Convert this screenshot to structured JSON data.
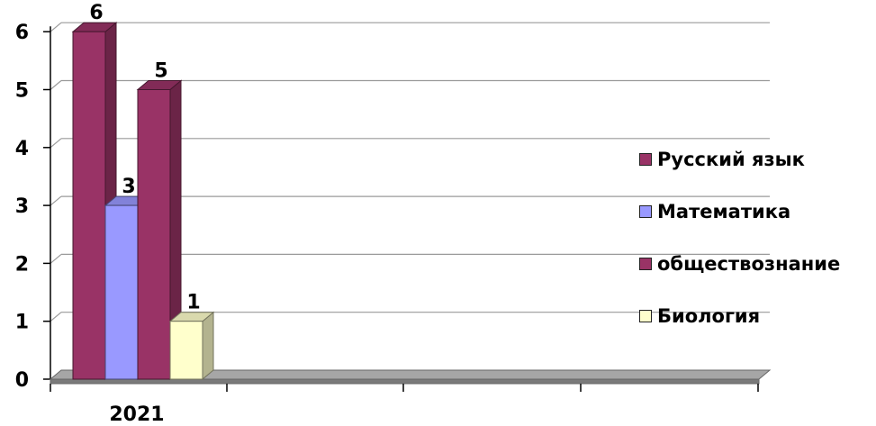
{
  "chart_data": {
    "type": "bar",
    "categories": [
      "2021"
    ],
    "series": [
      {
        "name": "Русский язык",
        "values": [
          6
        ],
        "color": "#993366",
        "label": "6"
      },
      {
        "name": "Математика",
        "values": [
          3
        ],
        "color": "#9999ff",
        "label": "3"
      },
      {
        "name": "обществознание",
        "values": [
          5
        ],
        "color": "#993366",
        "label": "5"
      },
      {
        "name": "Биология",
        "values": [
          1
        ],
        "color": "#ffffcc",
        "label": "1"
      }
    ],
    "yticks": [
      "0",
      "1",
      "2",
      "3",
      "4",
      "5",
      "6"
    ],
    "ylim": [
      0,
      6
    ],
    "grid": true,
    "legend_position": "right",
    "style": "3d-column"
  }
}
